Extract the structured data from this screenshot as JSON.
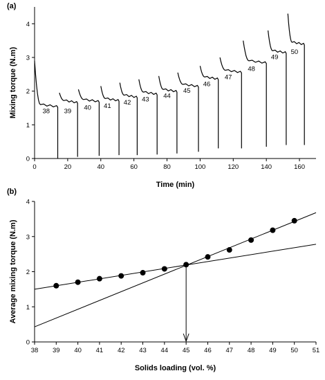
{
  "chart_data": [
    {
      "type": "line",
      "panel_label": "(a)",
      "xlabel": "Time (min)",
      "ylabel": "Mixing torque (N.m)",
      "xlim": [
        0,
        170
      ],
      "ylim": [
        0,
        4.5
      ],
      "xticks": [
        "0",
        "20",
        "40",
        "60",
        "80",
        "100",
        "120",
        "140",
        "160"
      ],
      "yticks": [
        "0",
        "1",
        "2",
        "3",
        "4"
      ],
      "grid": false,
      "segment_labels": [
        {
          "label": "38",
          "x": 7,
          "y": 1.35
        },
        {
          "label": "39",
          "x": 20,
          "y": 1.35
        },
        {
          "label": "40",
          "x": 32,
          "y": 1.45
        },
        {
          "label": "41",
          "x": 44,
          "y": 1.5
        },
        {
          "label": "42",
          "x": 56,
          "y": 1.6
        },
        {
          "label": "43",
          "x": 67,
          "y": 1.7
        },
        {
          "label": "44",
          "x": 80,
          "y": 1.8
        },
        {
          "label": "45",
          "x": 92,
          "y": 1.95
        },
        {
          "label": "46",
          "x": 104,
          "y": 2.15
        },
        {
          "label": "47",
          "x": 117,
          "y": 2.35
        },
        {
          "label": "48",
          "x": 131,
          "y": 2.6
        },
        {
          "label": "49",
          "x": 145,
          "y": 2.95
        },
        {
          "label": "50",
          "x": 157,
          "y": 3.1
        }
      ],
      "series": [
        {
          "segments": [
            {
              "start": 0,
              "end": 14,
              "peak": 2.9,
              "plateau": 1.6,
              "dip": 0
            },
            {
              "start": 15,
              "end": 26,
              "peak": 1.95,
              "plateau": 1.72,
              "dip": 0.05
            },
            {
              "start": 26.5,
              "end": 39,
              "peak": 2.05,
              "plateau": 1.75,
              "dip": 0.08
            },
            {
              "start": 40,
              "end": 51,
              "peak": 2.15,
              "plateau": 1.78,
              "dip": 0.1
            },
            {
              "start": 51.5,
              "end": 62,
              "peak": 2.25,
              "plateau": 1.88,
              "dip": 0.1
            },
            {
              "start": 63,
              "end": 74,
              "peak": 2.35,
              "plateau": 1.97,
              "dip": 0.12
            },
            {
              "start": 75,
              "end": 86,
              "peak": 2.45,
              "plateau": 2.05,
              "dip": 0.15
            },
            {
              "start": 86.5,
              "end": 99,
              "peak": 2.55,
              "plateau": 2.2,
              "dip": 0.2
            },
            {
              "start": 100,
              "end": 111,
              "peak": 2.75,
              "plateau": 2.42,
              "dip": 0.3
            },
            {
              "start": 112,
              "end": 125,
              "peak": 3.0,
              "plateau": 2.62,
              "dip": 0.3
            },
            {
              "start": 126,
              "end": 140,
              "peak": 3.5,
              "plateau": 2.9,
              "dip": 0.35
            },
            {
              "start": 141,
              "end": 152,
              "peak": 3.8,
              "plateau": 3.2,
              "dip": 0.4
            },
            {
              "start": 153,
              "end": 163,
              "peak": 4.3,
              "plateau": 3.45,
              "dip": 0.4
            }
          ]
        }
      ]
    },
    {
      "type": "scatter",
      "panel_label": "(b)",
      "xlabel": "Solids loading (vol. %)",
      "ylabel": "Average mixing torque (N.m)",
      "xlim": [
        38,
        51
      ],
      "ylim": [
        0,
        4
      ],
      "xticks": [
        "38",
        "39",
        "40",
        "41",
        "42",
        "43",
        "44",
        "45",
        "46",
        "47",
        "48",
        "49",
        "50",
        "51"
      ],
      "yticks": [
        "0",
        "1",
        "2",
        "3",
        "4"
      ],
      "grid": false,
      "series": [
        {
          "x": [
            39,
            40,
            41,
            42,
            43,
            44,
            45,
            46,
            47,
            48,
            49,
            50
          ],
          "y": [
            1.6,
            1.7,
            1.8,
            1.88,
            1.97,
            2.08,
            2.2,
            2.42,
            2.62,
            2.9,
            3.18,
            3.45
          ]
        }
      ],
      "fit_lines": [
        {
          "x": [
            38,
            51
          ],
          "y": [
            1.5,
            2.78
          ]
        },
        {
          "x": [
            38,
            51
          ],
          "y": [
            0.43,
            3.68
          ]
        }
      ],
      "annotation": {
        "type": "arrow",
        "x": 45,
        "from_y": 2.2,
        "to_y": 0
      }
    }
  ]
}
